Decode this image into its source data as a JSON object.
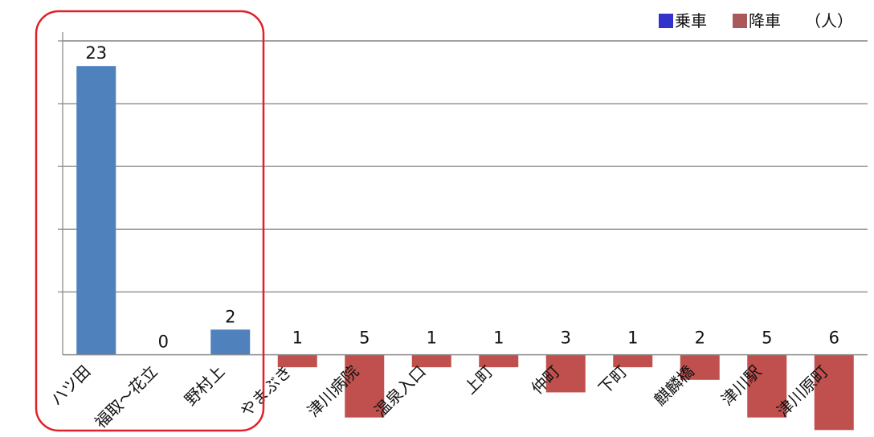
{
  "legend": {
    "boarding_label": "乗車",
    "alighting_label": "降車",
    "unit_label": "（人）"
  },
  "chart_data": {
    "type": "bar",
    "categories": [
      "ハツ田",
      "福取～花立",
      "野村上",
      "やまぶき",
      "津川病院",
      "温泉入口",
      "上町",
      "仲町",
      "下町",
      "麒麟橋",
      "津川駅",
      "津川原町"
    ],
    "series": [
      {
        "name": "乗車",
        "values": [
          23,
          0,
          2,
          null,
          null,
          null,
          null,
          null,
          null,
          null,
          null,
          null
        ]
      },
      {
        "name": "降車",
        "values": [
          null,
          null,
          null,
          1,
          5,
          1,
          1,
          3,
          1,
          2,
          5,
          6
        ]
      }
    ],
    "data_labels": [
      "23",
      "0",
      "2",
      "1",
      "5",
      "1",
      "1",
      "3",
      "1",
      "2",
      "5",
      "6"
    ],
    "ylim": [
      -6.3,
      25.7
    ],
    "gridline_step": 5,
    "grid": true,
    "legend_position": "top-right",
    "colors": {
      "boarding": "#4F81BD",
      "alighting": "#C0504D",
      "legend_boarding": "#3333CC",
      "legend_alighting": "#A9595A",
      "highlight": "#E0202A"
    }
  }
}
